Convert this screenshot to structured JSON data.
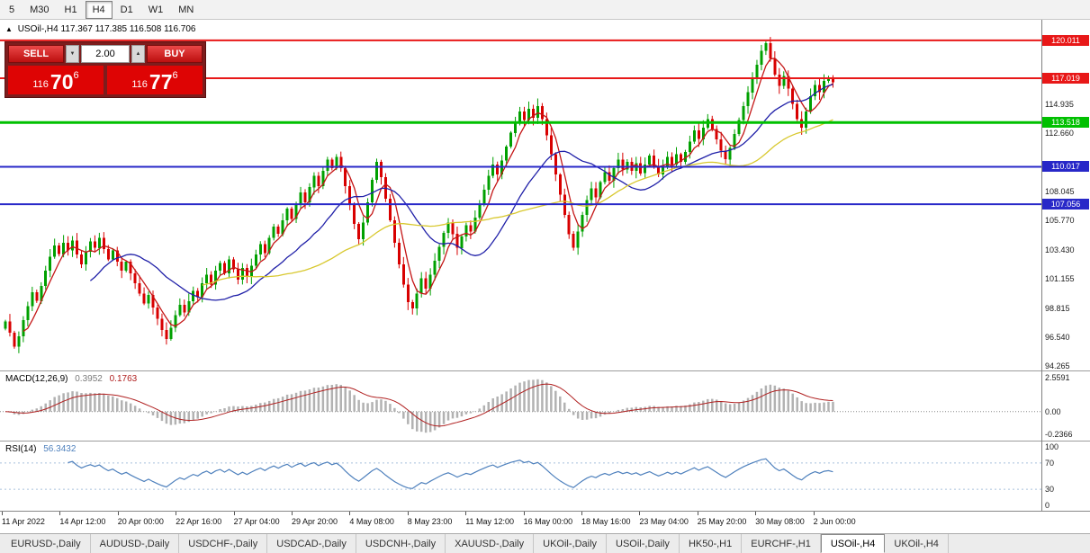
{
  "icons": {
    "symbol_marker": "▲",
    "volume_up": "▲",
    "volume_down": "▼"
  },
  "toolbar": {
    "timeframes": [
      "5",
      "M30",
      "H1",
      "H4",
      "D1",
      "W1",
      "MN"
    ],
    "active_timeframe": "H4"
  },
  "header": {
    "symbol": "USOil-,H4",
    "open": "117.367",
    "high": "117.385",
    "low": "116.508",
    "close": "116.706"
  },
  "trade_panel": {
    "sell_label": "SELL",
    "buy_label": "BUY",
    "volume": "2.00",
    "bid": {
      "prefix": "116",
      "main": "70",
      "sup": "6"
    },
    "ask": {
      "prefix": "116",
      "main": "77",
      "sup": "6"
    }
  },
  "chart_data": {
    "type": "candlestick",
    "title": "USOil-,H4",
    "y_range": [
      93.91,
      121.64
    ],
    "open_first": 97.2,
    "closes": [
      97.8,
      96.9,
      95.8,
      96.6,
      97.9,
      99.0,
      100.1,
      99.4,
      100.6,
      101.8,
      102.9,
      103.8,
      103.1,
      104.0,
      103.4,
      104.2,
      103.1,
      102.3,
      103.3,
      104.1,
      103.6,
      104.4,
      103.5,
      102.7,
      103.4,
      102.5,
      101.8,
      102.5,
      101.6,
      100.8,
      100.0,
      99.2,
      99.9,
      98.9,
      98.0,
      97.1,
      96.4,
      97.3,
      98.3,
      99.1,
      98.5,
      99.4,
      100.2,
      99.7,
      100.8,
      101.5,
      100.7,
      101.8,
      102.4,
      101.6,
      102.7,
      101.9,
      101.1,
      102.0,
      101.3,
      102.2,
      103.1,
      103.9,
      103.2,
      104.4,
      105.3,
      104.7,
      105.8,
      106.7,
      105.9,
      107.1,
      108.0,
      107.2,
      108.4,
      109.3,
      108.5,
      109.7,
      110.6,
      109.9,
      110.8,
      109.9,
      108.5,
      107.0,
      105.5,
      104.3,
      105.6,
      107.2,
      109.0,
      110.4,
      109.2,
      107.5,
      105.8,
      104.0,
      102.3,
      100.7,
      99.3,
      98.8,
      100.0,
      101.2,
      100.4,
      101.5,
      102.6,
      103.7,
      104.8,
      105.6,
      104.7,
      103.6,
      104.5,
      105.4,
      104.9,
      106.0,
      107.1,
      108.2,
      109.3,
      110.2,
      109.4,
      110.5,
      111.6,
      112.7,
      113.6,
      114.4,
      113.7,
      114.6,
      113.9,
      114.8,
      113.8,
      112.5,
      111.0,
      109.4,
      107.8,
      106.2,
      104.7,
      103.6,
      104.9,
      106.2,
      107.4,
      108.3,
      107.6,
      108.8,
      109.6,
      108.9,
      109.9,
      110.6,
      109.8,
      110.4,
      109.7,
      110.3,
      109.5,
      110.2,
      110.9,
      110.1,
      109.4,
      110.0,
      110.8,
      110.2,
      111.0,
      110.4,
      111.2,
      112.0,
      112.9,
      112.2,
      113.1,
      113.8,
      113.0,
      112.2,
      111.3,
      110.6,
      111.5,
      112.6,
      113.7,
      114.8,
      115.9,
      117.0,
      118.1,
      119.2,
      119.8,
      118.6,
      117.3,
      116.4,
      117.2,
      116.2,
      115.0,
      113.8,
      113.1,
      114.4,
      115.6,
      116.5,
      115.9,
      116.8,
      117.1,
      116.71
    ],
    "colors": {
      "up": "#00a000",
      "down": "#d80000",
      "ma_fast": "#c41616",
      "ma_mid": "#2020a8",
      "ma_slow": "#d8c82e"
    },
    "moving_averages": [
      {
        "period": 5,
        "color_key": "ma_fast"
      },
      {
        "period": 20,
        "color_key": "ma_mid"
      },
      {
        "period": 45,
        "color_key": "ma_slow"
      }
    ],
    "levels": [
      {
        "value": 120.011,
        "label": "120.011",
        "color": "#e81818",
        "width": 2
      },
      {
        "value": 117.019,
        "label": "117.019",
        "color": "#e81818",
        "width": 2
      },
      {
        "value": 113.518,
        "label": "113.518",
        "color": "#00c000",
        "width": 3
      },
      {
        "value": 110.017,
        "label": "110.017",
        "color": "#2828c8",
        "width": 2
      },
      {
        "value": 107.056,
        "label": "107.056",
        "color": "#2828c8",
        "width": 2
      }
    ],
    "price_ticks": [
      "114.935",
      "112.660",
      "108.045",
      "105.770",
      "103.430",
      "101.155",
      "98.815",
      "96.540",
      "94.265"
    ],
    "time_labels": [
      "11 Apr 2022",
      "14 Apr 12:00",
      "20 Apr 00:00",
      "22 Apr 16:00",
      "27 Apr 04:00",
      "29 Apr 20:00",
      "4 May 08:00",
      "8 May 23:00",
      "11 May 12:00",
      "16 May 00:00",
      "18 May 16:00",
      "23 May 04:00",
      "25 May 20:00",
      "30 May 08:00",
      "2 Jun 00:00"
    ]
  },
  "macd": {
    "label": "MACD(12,26,9)",
    "value_main": "0.3952",
    "value_signal": "0.1763",
    "axis_top": "2.5591",
    "axis_zero": "0.00",
    "axis_bottom": "-0.2366",
    "histogram_color": "#b2b2b2",
    "signal_color": "#b02020"
  },
  "rsi": {
    "label": "RSI(14)",
    "value": "56.3432",
    "axis_top": "100",
    "axis_70": "70",
    "axis_30": "30",
    "axis_bottom": "0",
    "line_color": "#4f81bd",
    "level_lines": [
      70,
      30
    ]
  },
  "tabs": [
    {
      "label": "EURUSD-,Daily"
    },
    {
      "label": "AUDUSD-,Daily"
    },
    {
      "label": "USDCHF-,Daily"
    },
    {
      "label": "USDCAD-,Daily"
    },
    {
      "label": "USDCNH-,Daily"
    },
    {
      "label": "XAUUSD-,Daily"
    },
    {
      "label": "UKOil-,Daily"
    },
    {
      "label": "USOil-,Daily"
    },
    {
      "label": "HK50-,H1"
    },
    {
      "label": "EURCHF-,H1"
    },
    {
      "label": "USOil-,H4",
      "active": true
    },
    {
      "label": "UKOil-,H4"
    }
  ]
}
